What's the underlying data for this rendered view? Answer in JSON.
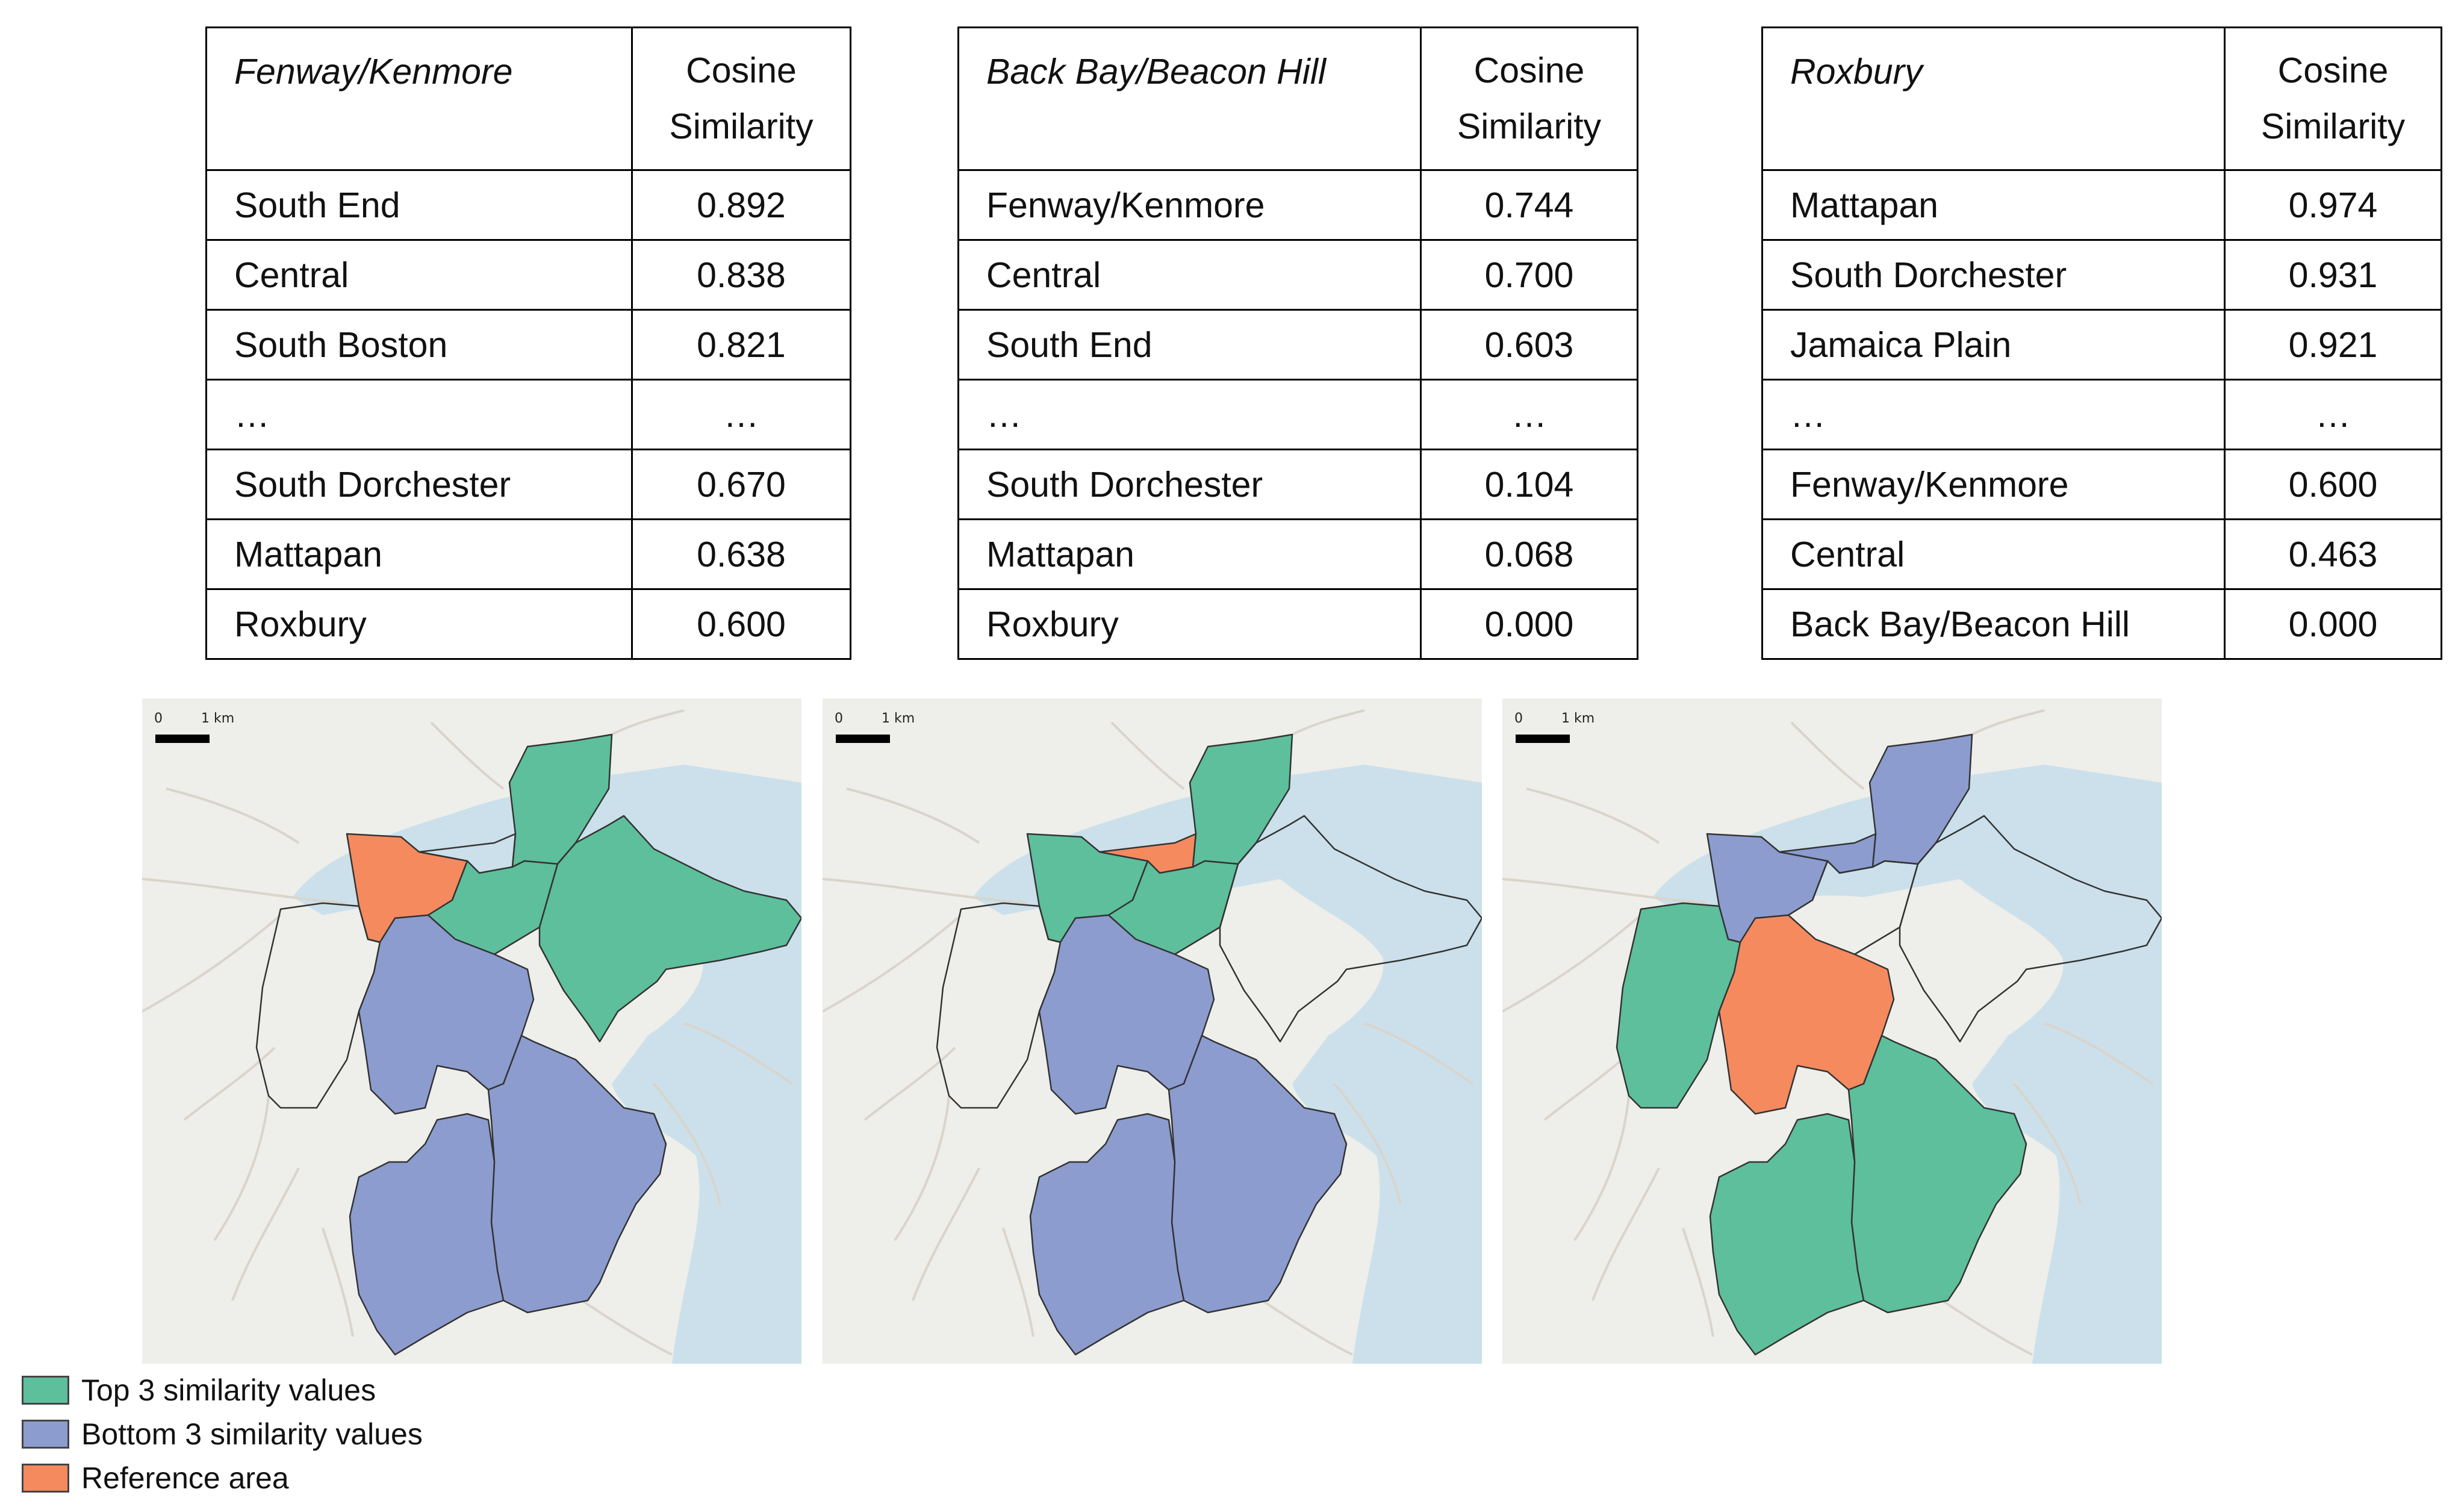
{
  "colors": {
    "top3": "#5dbf9c",
    "bottom3": "#8c9ccf",
    "reference": "#f58a5f",
    "water": "#cbe0ea",
    "land": "#eeeeea",
    "border": "#333333"
  },
  "tables": [
    {
      "reference": "Fenway/Kenmore",
      "header_line1": "Cosine",
      "header_line2": "Similarity",
      "rows": [
        {
          "name": "South End",
          "value": "0.892"
        },
        {
          "name": "Central",
          "value": "0.838"
        },
        {
          "name": "South Boston",
          "value": "0.821"
        },
        {
          "name": "…",
          "value": "…"
        },
        {
          "name": "South Dorchester",
          "value": "0.670"
        },
        {
          "name": "Mattapan",
          "value": "0.638"
        },
        {
          "name": "Roxbury",
          "value": "0.600"
        }
      ]
    },
    {
      "reference": "Back Bay/Beacon Hill",
      "header_line1": "Cosine",
      "header_line2": "Similarity",
      "rows": [
        {
          "name": "Fenway/Kenmore",
          "value": "0.744"
        },
        {
          "name": "Central",
          "value": "0.700"
        },
        {
          "name": "South End",
          "value": "0.603"
        },
        {
          "name": "…",
          "value": "…"
        },
        {
          "name": "South Dorchester",
          "value": "0.104"
        },
        {
          "name": "Mattapan",
          "value": "0.068"
        },
        {
          "name": "Roxbury",
          "value": "0.000"
        }
      ]
    },
    {
      "reference": "Roxbury",
      "header_line1": "Cosine",
      "header_line2": "Similarity",
      "rows": [
        {
          "name": "Mattapan",
          "value": "0.974"
        },
        {
          "name": "South Dorchester",
          "value": "0.931"
        },
        {
          "name": "Jamaica Plain",
          "value": "0.921"
        },
        {
          "name": "…",
          "value": "…"
        },
        {
          "name": "Fenway/Kenmore",
          "value": "0.600"
        },
        {
          "name": "Central",
          "value": "0.463"
        },
        {
          "name": "Back Bay/Beacon Hill",
          "value": "0.000"
        }
      ]
    }
  ],
  "maps": [
    {
      "scale_zero": "0",
      "scale_label": "1 km",
      "districts": {
        "fenway": "reference",
        "back_bay": "none",
        "central": "top3",
        "south_end": "top3",
        "south_boston": "top3",
        "jamaica_plain": "none",
        "roxbury": "bottom3",
        "south_dorchester": "bottom3",
        "mattapan": "bottom3"
      }
    },
    {
      "scale_zero": "0",
      "scale_label": "1 km",
      "districts": {
        "fenway": "top3",
        "back_bay": "reference",
        "central": "top3",
        "south_end": "top3",
        "south_boston": "none",
        "jamaica_plain": "none",
        "roxbury": "bottom3",
        "south_dorchester": "bottom3",
        "mattapan": "bottom3"
      }
    },
    {
      "scale_zero": "0",
      "scale_label": "1 km",
      "districts": {
        "fenway": "bottom3",
        "back_bay": "bottom3",
        "central": "bottom3",
        "south_end": "none",
        "south_boston": "none",
        "jamaica_plain": "top3",
        "roxbury": "reference",
        "south_dorchester": "top3",
        "mattapan": "top3"
      }
    }
  ],
  "legend": {
    "top3": "Top 3 similarity values",
    "bottom3": "Bottom 3 similarity values",
    "reference": "Reference area"
  }
}
